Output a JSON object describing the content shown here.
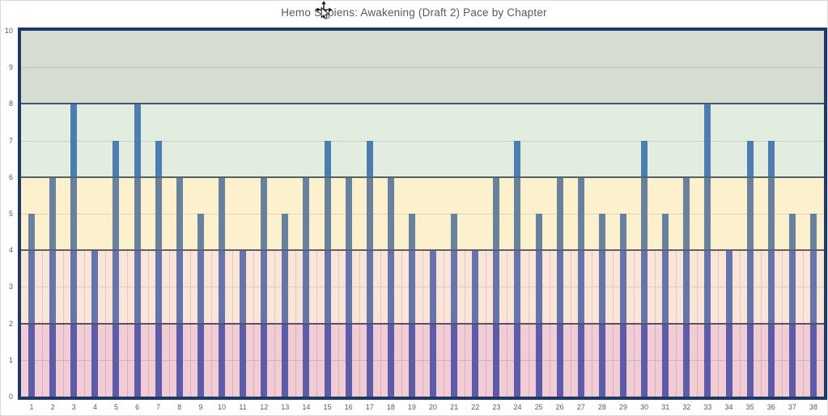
{
  "window": {
    "title": "Hemo Sapiens: Awakening (Draft 2) Pace by Chapter"
  },
  "cursor": {
    "type": "move-cursor"
  },
  "chart_data": {
    "type": "bar",
    "title": "Hemo Sapiens: Awakening (Draft 2) Pace by Chapter",
    "xlabel": "",
    "ylabel": "",
    "categories": [
      1,
      2,
      3,
      4,
      5,
      6,
      7,
      8,
      9,
      10,
      11,
      12,
      13,
      14,
      15,
      16,
      17,
      18,
      19,
      20,
      21,
      22,
      23,
      24,
      25,
      26,
      27,
      28,
      29,
      30,
      31,
      32,
      33,
      34,
      35,
      36,
      37,
      38
    ],
    "values": [
      5,
      6,
      8,
      4,
      7,
      8,
      7,
      6,
      5,
      6,
      4,
      6,
      5,
      6,
      7,
      6,
      7,
      6,
      5,
      4,
      5,
      4,
      6,
      7,
      5,
      6,
      6,
      5,
      5,
      7,
      5,
      6,
      8,
      4,
      7,
      7,
      5,
      5
    ],
    "ylim": [
      0,
      10
    ],
    "ytick_interval": 1,
    "grid": true,
    "legend": "none",
    "bar_color": "#2960BF",
    "gridline_color": "#D9D9D9",
    "boundary_line_color": "#1F3864",
    "plot_border_color": "#1F3864",
    "axis_label_color": "#595959",
    "title_color": "#595959",
    "frame_border_color": "#D9D9D9",
    "bands": [
      {
        "range": [
          8,
          10
        ],
        "overlay_color": "rgba(122,138,108,0.3)",
        "rendered_bg": "#D7DCD3"
      },
      {
        "range": [
          6,
          8
        ],
        "overlay_color": "rgba(158,192,148,0.3)",
        "rendered_bg": "#E2ECDF"
      },
      {
        "range": [
          4,
          6
        ],
        "overlay_color": "rgba(248,205,85,0.3)",
        "rendered_bg": "#FDF0CC"
      },
      {
        "range": [
          2,
          4
        ],
        "overlay_color": "rgba(242,165,125,0.3)",
        "rendered_bg": "#FBE4D8"
      },
      {
        "range": [
          0,
          2
        ],
        "overlay_color": "rgba(212,85,115,0.3)",
        "rendered_bg": "#F2CCD5"
      }
    ],
    "vgrid_max_value": 4
  }
}
